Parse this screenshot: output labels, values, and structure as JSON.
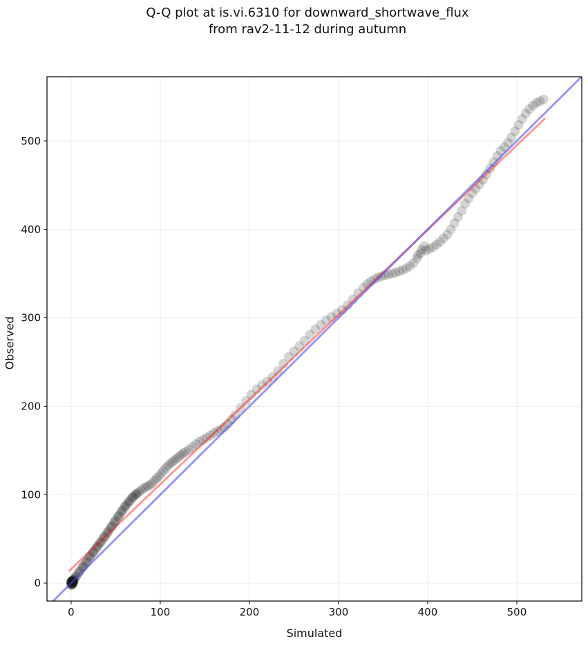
{
  "figure": {
    "title_line1": "Q-Q plot at is.vi.6310 for downward_shortwave_flux",
    "title_line2": "from rav2-11-12 during autumn",
    "xlabel": "Simulated",
    "ylabel": "Observed"
  },
  "chart_data": {
    "type": "scatter",
    "title": "Q-Q plot at is.vi.6310 for downward_shortwave_flux from rav2-11-12 during autumn",
    "xlabel": "Simulated",
    "ylabel": "Observed",
    "xlim": [
      -27.1,
      572.9
    ],
    "ylim": [
      -20.3,
      572.6
    ],
    "xticks": [
      0,
      100,
      200,
      300,
      400,
      500
    ],
    "yticks": [
      0,
      100,
      200,
      300,
      400,
      500
    ],
    "grid": true,
    "grid_color": "#ebebeb",
    "background": "#ffffff",
    "series": [
      {
        "name": "quantile-points",
        "type": "scatter",
        "color": "#141414",
        "alpha": 0.18,
        "marker_radius": 7,
        "points": [
          [
            0,
            -2
          ],
          [
            0,
            -1
          ],
          [
            0,
            0
          ],
          [
            0,
            1
          ],
          [
            0,
            2
          ],
          [
            0.5,
            -2.5
          ],
          [
            0.5,
            0.5
          ],
          [
            1,
            -1
          ],
          [
            1,
            0
          ],
          [
            1,
            1
          ],
          [
            1,
            2
          ],
          [
            1.5,
            -0.5
          ],
          [
            1.5,
            1.5
          ],
          [
            2,
            0
          ],
          [
            2,
            1
          ],
          [
            2,
            2
          ],
          [
            2,
            3
          ],
          [
            2.5,
            1.5
          ],
          [
            3,
            2
          ],
          [
            3,
            4
          ],
          [
            0.2,
            0.8
          ],
          [
            1.2,
            2.2
          ],
          [
            0.8,
            -1.6
          ],
          [
            1.8,
            1.1
          ],
          [
            2.2,
            3.1
          ],
          [
            0.4,
            1.9
          ],
          [
            2.8,
            3.8
          ],
          [
            1.4,
            -1.2
          ],
          [
            0.6,
            2.6
          ],
          [
            2.6,
            0.6
          ],
          [
            4,
            5.5
          ],
          [
            6,
            8
          ],
          [
            8,
            11
          ],
          [
            10,
            14
          ],
          [
            12,
            17
          ],
          [
            14,
            19.5
          ],
          [
            16,
            22.5
          ],
          [
            18,
            25
          ],
          [
            20,
            28.5
          ],
          [
            22,
            31
          ],
          [
            24,
            34
          ],
          [
            26,
            36.5
          ],
          [
            28,
            39.5
          ],
          [
            30,
            42
          ],
          [
            32,
            45
          ],
          [
            34,
            47.5
          ],
          [
            36,
            50.5
          ],
          [
            38,
            53
          ],
          [
            40,
            56
          ],
          [
            42,
            59
          ],
          [
            44,
            62
          ],
          [
            46,
            65
          ],
          [
            48,
            68
          ],
          [
            50,
            71
          ],
          [
            52,
            74
          ],
          [
            54,
            77
          ],
          [
            56,
            80
          ],
          [
            58,
            83
          ],
          [
            60,
            86
          ],
          [
            62,
            88.5
          ],
          [
            64,
            91
          ],
          [
            66,
            93.5
          ],
          [
            68,
            96
          ],
          [
            70,
            98
          ],
          [
            72,
            100
          ],
          [
            74,
            101.5
          ],
          [
            5,
            7
          ],
          [
            9,
            12.5
          ],
          [
            13,
            18
          ],
          [
            17,
            24
          ],
          [
            21,
            30
          ],
          [
            25,
            35
          ],
          [
            29,
            41
          ],
          [
            33,
            46
          ],
          [
            37,
            52
          ],
          [
            41,
            57.5
          ],
          [
            45,
            63.5
          ],
          [
            49,
            69.5
          ],
          [
            53,
            75.5
          ],
          [
            57,
            81.5
          ],
          [
            61,
            87
          ],
          [
            65,
            92
          ],
          [
            69,
            97
          ],
          [
            73,
            100.5
          ],
          [
            76,
            103
          ],
          [
            78.5,
            105
          ],
          [
            81,
            107
          ],
          [
            83.5,
            108.5
          ],
          [
            86,
            109.5
          ],
          [
            88.5,
            111
          ],
          [
            91,
            113
          ],
          [
            93.5,
            116
          ],
          [
            96,
            118.5
          ],
          [
            98.5,
            121
          ],
          [
            101,
            124
          ],
          [
            103.5,
            127
          ],
          [
            106,
            130
          ],
          [
            108.5,
            132.5
          ],
          [
            111,
            135
          ],
          [
            113.5,
            137
          ],
          [
            116,
            139
          ],
          [
            118.5,
            141
          ],
          [
            121,
            143
          ],
          [
            123.5,
            145
          ],
          [
            126,
            147
          ],
          [
            128.5,
            148.5
          ],
          [
            132,
            151
          ],
          [
            136,
            154
          ],
          [
            140,
            157
          ],
          [
            144,
            160
          ],
          [
            148,
            162
          ],
          [
            152,
            164.5
          ],
          [
            156,
            167
          ],
          [
            160,
            169.5
          ],
          [
            164,
            172
          ],
          [
            168,
            174
          ],
          [
            172,
            176.5
          ],
          [
            176,
            180
          ],
          [
            180,
            185
          ],
          [
            184,
            190
          ],
          [
            190,
            198
          ],
          [
            196,
            206
          ],
          [
            202,
            213
          ],
          [
            208,
            219
          ],
          [
            214,
            224
          ],
          [
            220,
            228
          ],
          [
            226,
            233
          ],
          [
            232,
            240
          ],
          [
            238,
            248
          ],
          [
            244,
            256
          ],
          [
            250,
            262
          ],
          [
            256,
            268
          ],
          [
            262,
            274
          ],
          [
            268,
            281
          ],
          [
            274,
            287
          ],
          [
            280,
            292
          ],
          [
            286,
            297
          ],
          [
            292,
            301
          ],
          [
            298,
            305
          ],
          [
            304,
            309
          ],
          [
            310,
            314
          ],
          [
            316,
            321
          ],
          [
            322,
            328
          ],
          [
            328,
            334
          ],
          [
            332,
            338
          ],
          [
            336,
            341
          ],
          [
            340,
            343.5
          ],
          [
            344,
            345.5
          ],
          [
            348,
            347
          ],
          [
            352,
            348
          ],
          [
            356,
            349
          ],
          [
            360,
            350
          ],
          [
            364,
            351
          ],
          [
            368,
            352.5
          ],
          [
            372,
            354
          ],
          [
            376,
            356
          ],
          [
            380,
            358.5
          ],
          [
            384,
            362
          ],
          [
            388,
            367
          ],
          [
            392,
            373
          ],
          [
            389,
            371
          ],
          [
            393,
            377
          ],
          [
            396,
            381
          ],
          [
            398,
            376
          ],
          [
            402,
            378
          ],
          [
            406,
            380
          ],
          [
            410,
            383
          ],
          [
            414,
            386
          ],
          [
            418,
            390
          ],
          [
            422,
            394
          ],
          [
            426,
            400
          ],
          [
            430,
            407
          ],
          [
            434,
            414
          ],
          [
            438,
            421
          ],
          [
            442,
            429
          ],
          [
            446,
            435
          ],
          [
            450,
            441
          ],
          [
            454,
            446
          ],
          [
            458,
            451
          ],
          [
            462,
            456
          ],
          [
            466,
            462
          ],
          [
            470,
            469
          ],
          [
            474,
            476
          ],
          [
            478,
            483
          ],
          [
            482,
            489
          ],
          [
            486,
            493
          ],
          [
            490,
            498
          ],
          [
            494,
            504
          ],
          [
            498,
            511
          ],
          [
            502,
            518
          ],
          [
            506,
            525
          ],
          [
            510,
            531
          ],
          [
            514,
            536
          ],
          [
            518,
            540
          ],
          [
            522,
            543
          ],
          [
            526,
            545
          ],
          [
            530,
            547
          ]
        ]
      },
      {
        "name": "fit-line",
        "type": "line",
        "color": "#ff0000",
        "alpha": 0.4,
        "width": 3,
        "points": [
          [
            -2,
            14
          ],
          [
            531,
            525
          ]
        ]
      },
      {
        "name": "identity-line",
        "type": "line",
        "color": "#4444ee",
        "alpha": 0.55,
        "width": 3,
        "points": [
          [
            -27,
            -27
          ],
          [
            573,
            573
          ]
        ]
      }
    ]
  }
}
